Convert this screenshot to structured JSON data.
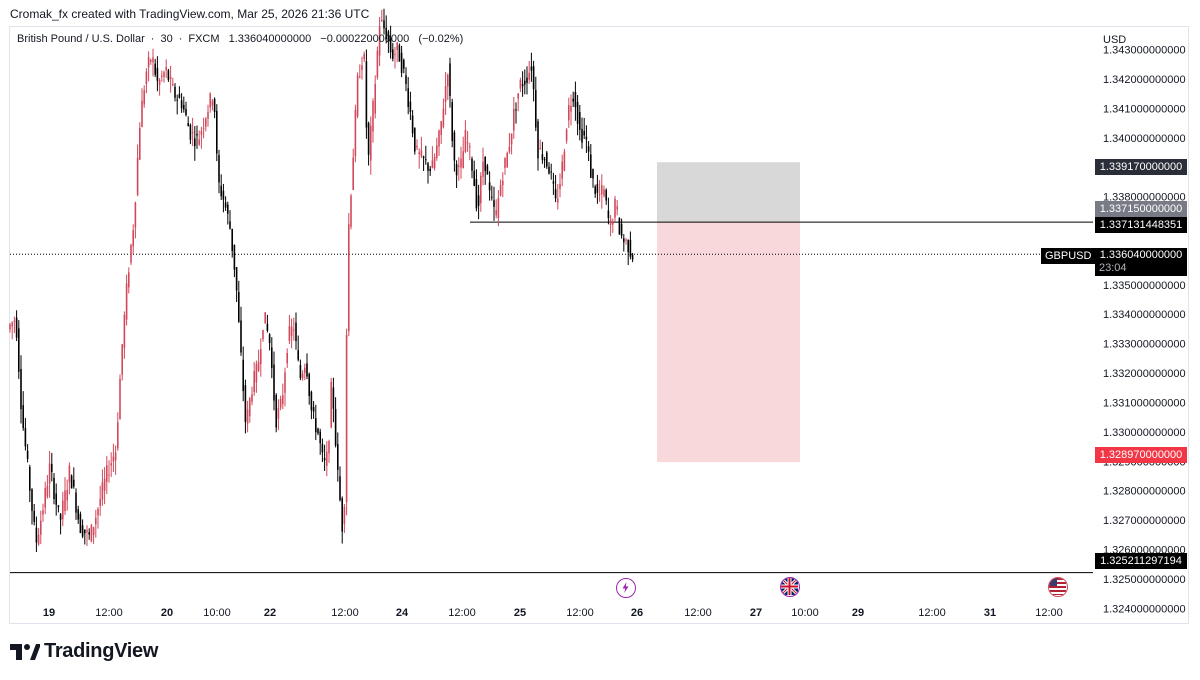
{
  "credit": "Cromak_fx created with TradingView.com, Mar 25, 2026 21:36 UTC",
  "symbol": {
    "name": "British Pound / U.S. Dollar",
    "interval": "30",
    "exchange": "FXCM",
    "last": "1.336040000000",
    "change": "−0.000220000000",
    "change_pct": "(−0.02%)",
    "ticker": "GBPUSD",
    "countdown": "23:04"
  },
  "currency": "USD",
  "price_tags": {
    "target": "1.339170000000",
    "entry_box": "1.337150000000",
    "resistance_line": "1.337131448351",
    "current": "1.336040000000",
    "stop": "1.328970000000",
    "support_line": "1.325211297194"
  },
  "brand": "TradingView",
  "colors": {
    "up": "#d2485a",
    "down": "#000000",
    "stop_zone": "#f8d4d8",
    "target_zone": "#d6d6d6",
    "stop_tag": "#f23645"
  },
  "events": [
    {
      "icon": "lightning-icon",
      "label": "lightning"
    },
    {
      "icon": "uk-flag-icon",
      "label": "uk"
    },
    {
      "icon": "us-flag-icon",
      "label": "us"
    }
  ],
  "chart_data": {
    "type": "candlestick",
    "y_axis_labels": [
      "1.343000000000",
      "1.342000000000",
      "1.341000000000",
      "1.340000000000",
      "1.339000000000",
      "1.338000000000",
      "1.337000000000",
      "1.336000000000",
      "1.335000000000",
      "1.334000000000",
      "1.333000000000",
      "1.332000000000",
      "1.331000000000",
      "1.330000000000",
      "1.329000000000",
      "1.328000000000",
      "1.327000000000",
      "1.326000000000",
      "1.325000000000",
      "1.324000000000"
    ],
    "y_axis_values": [
      1.343,
      1.342,
      1.341,
      1.34,
      1.339,
      1.338,
      1.337,
      1.336,
      1.335,
      1.334,
      1.333,
      1.332,
      1.331,
      1.33,
      1.329,
      1.328,
      1.327,
      1.326,
      1.325,
      1.324
    ],
    "ylim": [
      1.3235,
      1.3437
    ],
    "x_tick_labels": [
      "19",
      "12:00",
      "20",
      "10:00",
      "22",
      "12:00",
      "24",
      "12:00",
      "25",
      "12:00",
      "26",
      "12:00",
      "27",
      "10:00",
      "29",
      "12:00",
      "31",
      "12:00"
    ],
    "price_path": [
      [
        0,
        1.3335
      ],
      [
        8,
        1.3339
      ],
      [
        14,
        1.3306
      ],
      [
        22,
        1.3281
      ],
      [
        28,
        1.3262
      ],
      [
        34,
        1.3272
      ],
      [
        42,
        1.3288
      ],
      [
        52,
        1.3269
      ],
      [
        62,
        1.3287
      ],
      [
        72,
        1.3268
      ],
      [
        82,
        1.3264
      ],
      [
        90,
        1.3274
      ],
      [
        100,
        1.3287
      ],
      [
        108,
        1.3294
      ],
      [
        114,
        1.3328
      ],
      [
        120,
        1.3353
      ],
      [
        126,
        1.3372
      ],
      [
        132,
        1.3405
      ],
      [
        138,
        1.3422
      ],
      [
        144,
        1.3428
      ],
      [
        150,
        1.3418
      ],
      [
        158,
        1.3423
      ],
      [
        166,
        1.3415
      ],
      [
        174,
        1.3412
      ],
      [
        182,
        1.3402
      ],
      [
        190,
        1.3399
      ],
      [
        198,
        1.3408
      ],
      [
        206,
        1.3416
      ],
      [
        210,
        1.3385
      ],
      [
        216,
        1.3379
      ],
      [
        222,
        1.337
      ],
      [
        228,
        1.3352
      ],
      [
        232,
        1.3331
      ],
      [
        238,
        1.3302
      ],
      [
        244,
        1.3315
      ],
      [
        250,
        1.3322
      ],
      [
        256,
        1.334
      ],
      [
        262,
        1.333
      ],
      [
        268,
        1.3304
      ],
      [
        274,
        1.331
      ],
      [
        280,
        1.3332
      ],
      [
        286,
        1.3336
      ],
      [
        292,
        1.3318
      ],
      [
        298,
        1.3325
      ],
      [
        304,
        1.3306
      ],
      [
        310,
        1.33
      ],
      [
        316,
        1.3288
      ],
      [
        320,
        1.3292
      ],
      [
        324,
        1.3318
      ],
      [
        330,
        1.3285
      ],
      [
        336,
        1.3262
      ],
      [
        340,
        1.3365
      ],
      [
        346,
        1.3398
      ],
      [
        350,
        1.342
      ],
      [
        356,
        1.343
      ],
      [
        360,
        1.339
      ],
      [
        366,
        1.3413
      ],
      [
        372,
        1.344
      ],
      [
        378,
        1.3436
      ],
      [
        384,
        1.3428
      ],
      [
        390,
        1.343
      ],
      [
        396,
        1.3422
      ],
      [
        402,
        1.341
      ],
      [
        408,
        1.3395
      ],
      [
        416,
        1.3392
      ],
      [
        424,
        1.3389
      ],
      [
        432,
        1.3401
      ],
      [
        440,
        1.3424
      ],
      [
        446,
        1.3392
      ],
      [
        452,
        1.3388
      ],
      [
        458,
        1.3401
      ],
      [
        464,
        1.3391
      ],
      [
        470,
        1.3375
      ],
      [
        476,
        1.3395
      ],
      [
        482,
        1.338
      ],
      [
        488,
        1.3373
      ],
      [
        494,
        1.3387
      ],
      [
        500,
        1.3395
      ],
      [
        506,
        1.3408
      ],
      [
        512,
        1.3418
      ],
      [
        518,
        1.342
      ],
      [
        524,
        1.3425
      ],
      [
        530,
        1.3396
      ],
      [
        536,
        1.3394
      ],
      [
        542,
        1.3389
      ],
      [
        548,
        1.3377
      ],
      [
        554,
        1.3389
      ],
      [
        560,
        1.3409
      ],
      [
        566,
        1.3416
      ],
      [
        572,
        1.3402
      ],
      [
        578,
        1.34
      ],
      [
        584,
        1.3386
      ],
      [
        590,
        1.338
      ],
      [
        596,
        1.3382
      ],
      [
        602,
        1.3369
      ],
      [
        608,
        1.3378
      ],
      [
        612,
        1.3368
      ],
      [
        616,
        1.3365
      ],
      [
        620,
        1.3364
      ],
      [
        624,
        1.33604
      ]
    ],
    "zones": {
      "target": {
        "top": 1.33917,
        "bottom": 1.33715
      },
      "stop": {
        "top": 1.33715,
        "bottom": 1.32897
      }
    },
    "hlines": [
      1.337131448351,
      1.325211297194
    ],
    "current_price": 1.33604
  }
}
